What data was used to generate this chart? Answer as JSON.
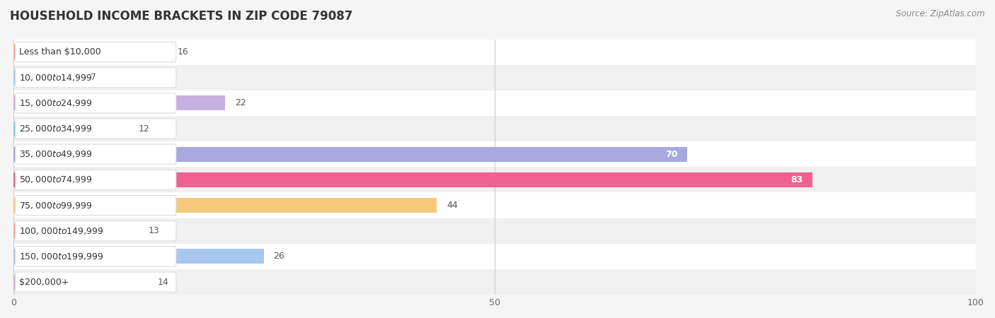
{
  "title": "HOUSEHOLD INCOME BRACKETS IN ZIP CODE 79087",
  "source": "Source: ZipAtlas.com",
  "categories": [
    "Less than $10,000",
    "$10,000 to $14,999",
    "$15,000 to $24,999",
    "$25,000 to $34,999",
    "$35,000 to $49,999",
    "$50,000 to $74,999",
    "$75,000 to $99,999",
    "$100,000 to $149,999",
    "$150,000 to $199,999",
    "$200,000+"
  ],
  "values": [
    16,
    7,
    22,
    12,
    70,
    83,
    44,
    13,
    26,
    14
  ],
  "bar_colors": [
    "#f5a8a0",
    "#a8c8f0",
    "#c8b0e0",
    "#80d4cc",
    "#a8a8e0",
    "#f06090",
    "#f8c87a",
    "#f5a8a0",
    "#a8c8f0",
    "#c8b0e0"
  ],
  "xlim": [
    0,
    100
  ],
  "xticks": [
    0,
    50,
    100
  ],
  "background_color": "#f5f5f5",
  "row_colors": [
    "#ffffff",
    "#f0f0f0"
  ],
  "bar_height": 0.58,
  "label_fontsize": 9.0,
  "value_fontsize": 9.0,
  "title_fontsize": 12,
  "source_fontsize": 8.5
}
